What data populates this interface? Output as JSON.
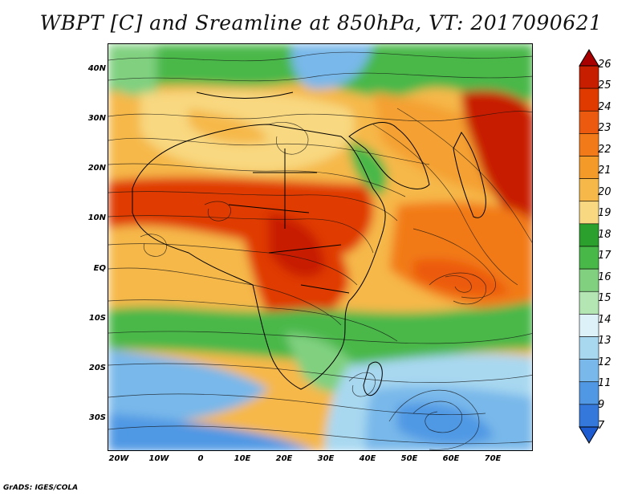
{
  "title": "WBPT [C] and Sreamline at 850hPa, VT: 2017090621",
  "credit": "GrADS: IGES/COLA",
  "map": {
    "lat_labels": [
      "40N",
      "30N",
      "20N",
      "10N",
      "EQ",
      "10S",
      "20S",
      "30S"
    ],
    "lon_labels": [
      "20W",
      "10W",
      "0",
      "10E",
      "20E",
      "30E",
      "40E",
      "50E",
      "60E",
      "70E"
    ]
  },
  "colorbar": {
    "labels": [
      "26",
      "25",
      "24",
      "23",
      "22",
      "21",
      "20",
      "19",
      "18",
      "17",
      "16",
      "15",
      "14",
      "13",
      "12",
      "11",
      "9",
      "7"
    ],
    "colors": [
      "#a80000",
      "#c81e00",
      "#e03a00",
      "#ec5a10",
      "#f27a18",
      "#f49a28",
      "#f6b848",
      "#f8d880",
      "#2ca02c",
      "#48b848",
      "#80d080",
      "#b4e6b4",
      "#dcf2f8",
      "#a8d8f0",
      "#78b8ea",
      "#5098e4",
      "#3478dc",
      "#1c5cd0"
    ]
  }
}
